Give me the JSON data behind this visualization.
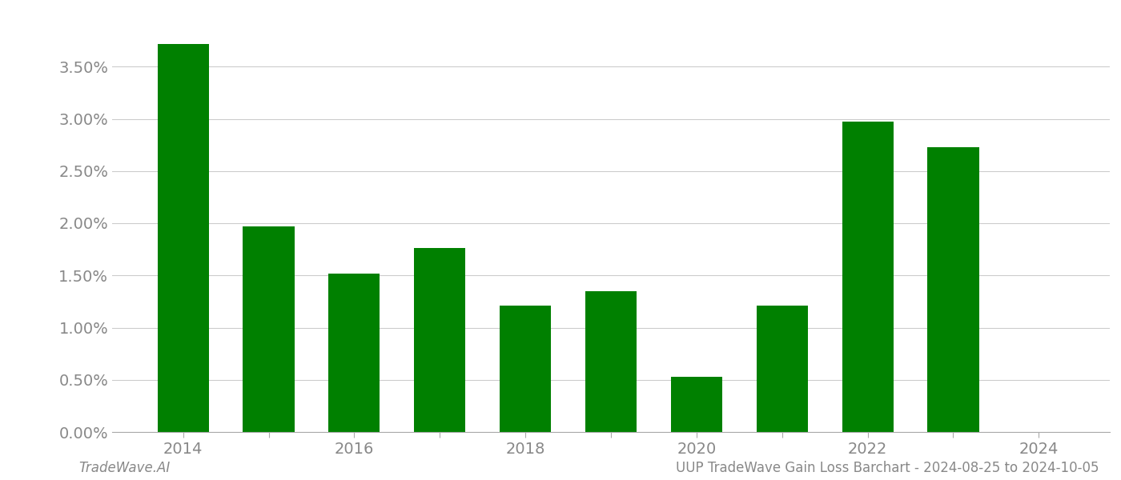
{
  "years": [
    2014,
    2015,
    2016,
    2017,
    2018,
    2019,
    2020,
    2021,
    2022,
    2023,
    2024
  ],
  "values": [
    0.0372,
    0.0197,
    0.0152,
    0.0176,
    0.0121,
    0.0135,
    0.0053,
    0.0121,
    0.0297,
    0.0273,
    0.0
  ],
  "bar_color": "#008000",
  "background_color": "#ffffff",
  "grid_color": "#cccccc",
  "axis_color": "#aaaaaa",
  "tick_color": "#888888",
  "ylim_max": 0.04,
  "yticks": [
    0.0,
    0.005,
    0.01,
    0.015,
    0.02,
    0.025,
    0.03,
    0.035
  ],
  "footer_left": "TradeWave.AI",
  "footer_right": "UUP TradeWave Gain Loss Barchart - 2024-08-25 to 2024-10-05",
  "footer_color": "#888888"
}
